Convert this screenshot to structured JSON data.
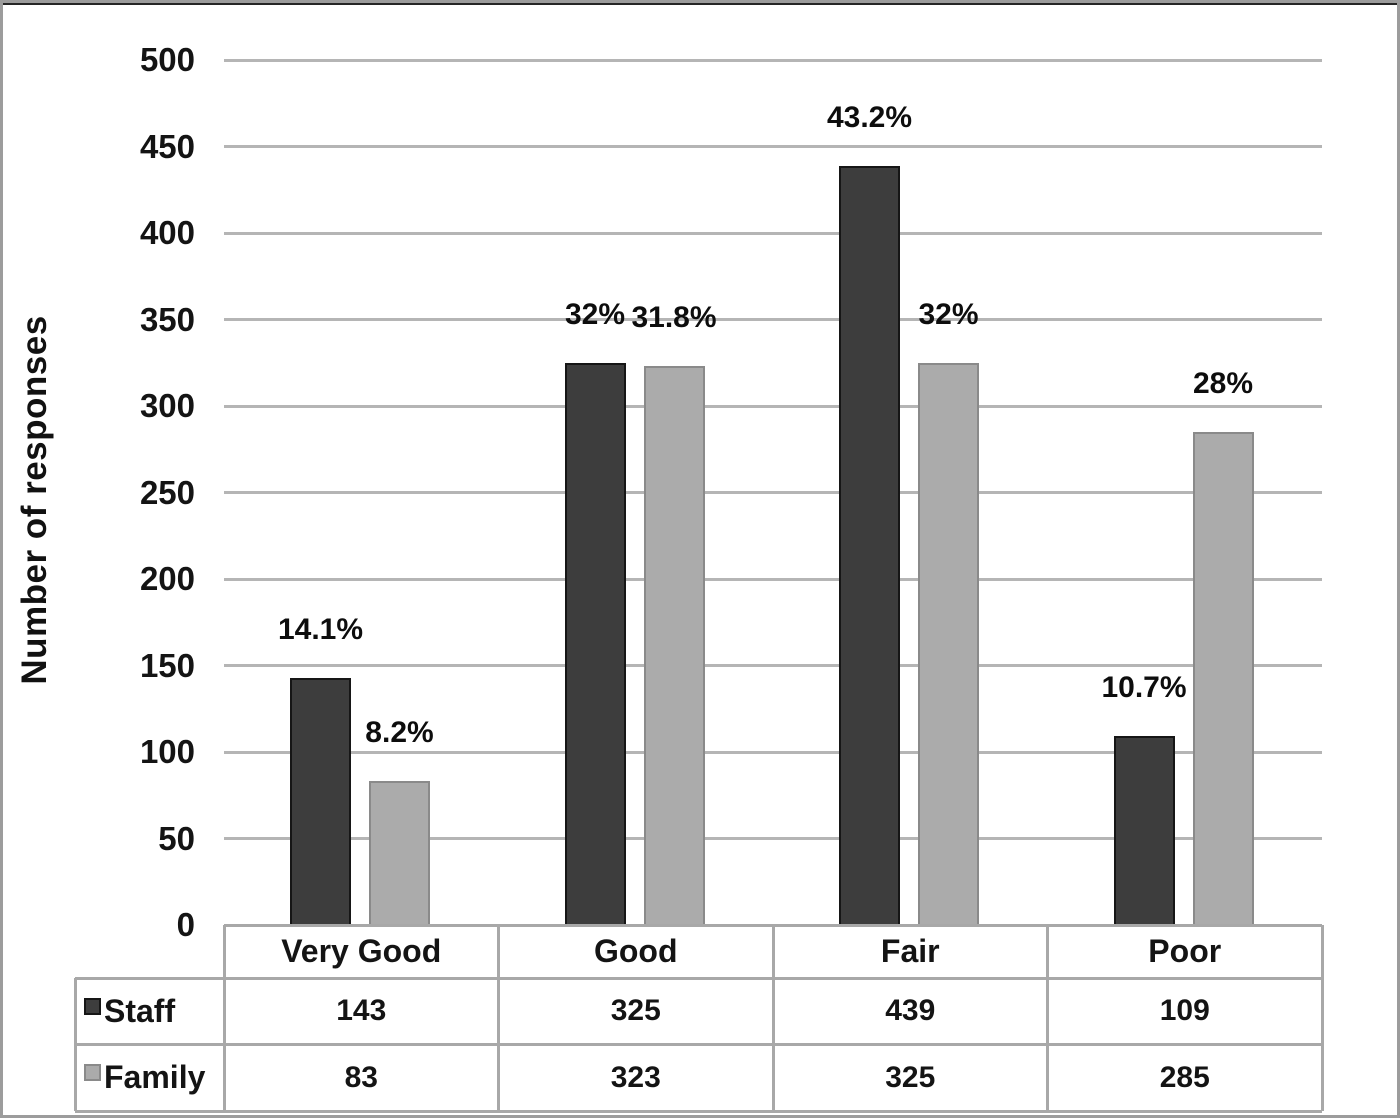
{
  "chart_data": {
    "type": "bar",
    "categories": [
      "Very Good",
      "Good",
      "Fair",
      "Poor"
    ],
    "series": [
      {
        "name": "Staff",
        "values": [
          143,
          325,
          439,
          109
        ],
        "labels": [
          "14.1%",
          "32%",
          "43.2%",
          "10.7%"
        ]
      },
      {
        "name": "Family",
        "values": [
          83,
          323,
          325,
          285
        ],
        "labels": [
          "8.2%",
          "31.8%",
          "32%",
          "28%"
        ]
      }
    ],
    "title": "",
    "xlabel": "",
    "ylabel": "Number of responses",
    "ylim": [
      0,
      500
    ],
    "ytick_step": 50,
    "grid": true,
    "legend_position": "table-rows"
  },
  "table": {
    "headers": [
      "Very Good",
      "Good",
      "Fair",
      "Poor"
    ],
    "rows": [
      {
        "label": "Staff",
        "values": [
          "143",
          "325",
          "439",
          "109"
        ]
      },
      {
        "label": "Family",
        "values": [
          "83",
          "323",
          "325",
          "285"
        ]
      }
    ]
  },
  "colors": {
    "staff_bar": "#3d3d3d",
    "staff_border": "#161616",
    "family_bar": "#ababab",
    "family_border": "#8a8a8a",
    "gridline": "#b5b5b5",
    "table_border": "#a8a8a8",
    "frame": "#9c9c9c",
    "frame_top": "#262626",
    "text": "#141414"
  }
}
